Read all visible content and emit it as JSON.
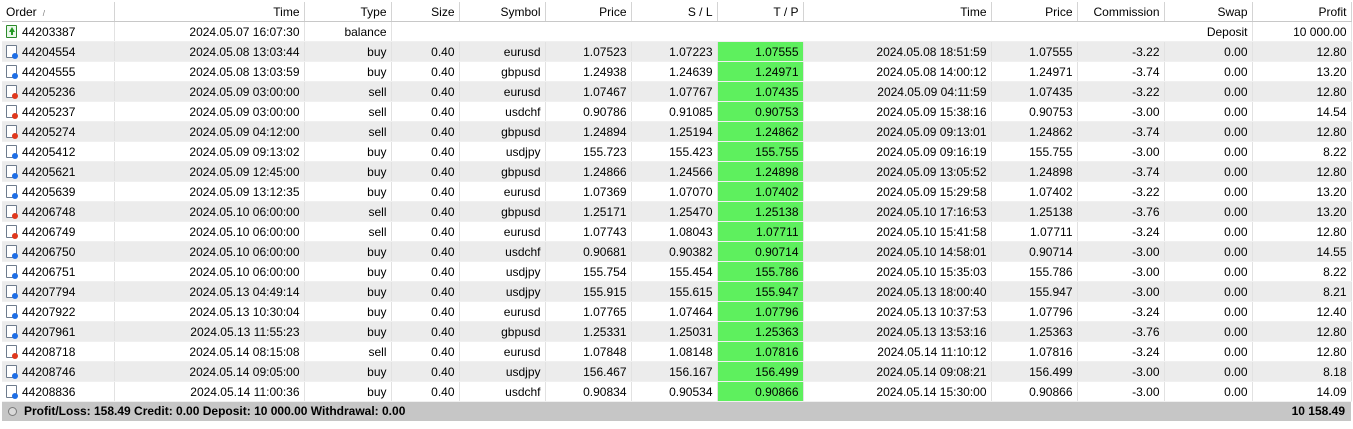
{
  "headers": {
    "order": "Order",
    "open_time": "Time",
    "type": "Type",
    "size": "Size",
    "symbol": "Symbol",
    "open_price": "Price",
    "sl": "S / L",
    "tp": "T / P",
    "close_time": "Time",
    "close_price": "Price",
    "commission": "Commission",
    "swap": "Swap",
    "profit": "Profit"
  },
  "balance_row": {
    "order": "44203387",
    "time": "2024.05.07 16:07:30",
    "type": "balance",
    "comment": "Deposit",
    "profit": "10 000.00"
  },
  "trades": [
    {
      "order": "44204554",
      "open_time": "2024.05.08 13:03:44",
      "type": "buy",
      "size": "0.40",
      "symbol": "eurusd",
      "open_price": "1.07523",
      "sl": "1.07223",
      "tp": "1.07555",
      "close_time": "2024.05.08 18:51:59",
      "close_price": "1.07555",
      "commission": "-3.22",
      "swap": "0.00",
      "profit": "12.80"
    },
    {
      "order": "44204555",
      "open_time": "2024.05.08 13:03:59",
      "type": "buy",
      "size": "0.40",
      "symbol": "gbpusd",
      "open_price": "1.24938",
      "sl": "1.24639",
      "tp": "1.24971",
      "close_time": "2024.05.08 14:00:12",
      "close_price": "1.24971",
      "commission": "-3.74",
      "swap": "0.00",
      "profit": "13.20"
    },
    {
      "order": "44205236",
      "open_time": "2024.05.09 03:00:00",
      "type": "sell",
      "size": "0.40",
      "symbol": "eurusd",
      "open_price": "1.07467",
      "sl": "1.07767",
      "tp": "1.07435",
      "close_time": "2024.05.09 04:11:59",
      "close_price": "1.07435",
      "commission": "-3.22",
      "swap": "0.00",
      "profit": "12.80"
    },
    {
      "order": "44205237",
      "open_time": "2024.05.09 03:00:00",
      "type": "sell",
      "size": "0.40",
      "symbol": "usdchf",
      "open_price": "0.90786",
      "sl": "0.91085",
      "tp": "0.90753",
      "close_time": "2024.05.09 15:38:16",
      "close_price": "0.90753",
      "commission": "-3.00",
      "swap": "0.00",
      "profit": "14.54"
    },
    {
      "order": "44205274",
      "open_time": "2024.05.09 04:12:00",
      "type": "sell",
      "size": "0.40",
      "symbol": "gbpusd",
      "open_price": "1.24894",
      "sl": "1.25194",
      "tp": "1.24862",
      "close_time": "2024.05.09 09:13:01",
      "close_price": "1.24862",
      "commission": "-3.74",
      "swap": "0.00",
      "profit": "12.80"
    },
    {
      "order": "44205412",
      "open_time": "2024.05.09 09:13:02",
      "type": "buy",
      "size": "0.40",
      "symbol": "usdjpy",
      "open_price": "155.723",
      "sl": "155.423",
      "tp": "155.755",
      "close_time": "2024.05.09 09:16:19",
      "close_price": "155.755",
      "commission": "-3.00",
      "swap": "0.00",
      "profit": "8.22"
    },
    {
      "order": "44205621",
      "open_time": "2024.05.09 12:45:00",
      "type": "buy",
      "size": "0.40",
      "symbol": "gbpusd",
      "open_price": "1.24866",
      "sl": "1.24566",
      "tp": "1.24898",
      "close_time": "2024.05.09 13:05:52",
      "close_price": "1.24898",
      "commission": "-3.74",
      "swap": "0.00",
      "profit": "12.80"
    },
    {
      "order": "44205639",
      "open_time": "2024.05.09 13:12:35",
      "type": "buy",
      "size": "0.40",
      "symbol": "eurusd",
      "open_price": "1.07369",
      "sl": "1.07070",
      "tp": "1.07402",
      "close_time": "2024.05.09 15:29:58",
      "close_price": "1.07402",
      "commission": "-3.22",
      "swap": "0.00",
      "profit": "13.20"
    },
    {
      "order": "44206748",
      "open_time": "2024.05.10 06:00:00",
      "type": "sell",
      "size": "0.40",
      "symbol": "gbpusd",
      "open_price": "1.25171",
      "sl": "1.25470",
      "tp": "1.25138",
      "close_time": "2024.05.10 17:16:53",
      "close_price": "1.25138",
      "commission": "-3.76",
      "swap": "0.00",
      "profit": "13.20"
    },
    {
      "order": "44206749",
      "open_time": "2024.05.10 06:00:00",
      "type": "sell",
      "size": "0.40",
      "symbol": "eurusd",
      "open_price": "1.07743",
      "sl": "1.08043",
      "tp": "1.07711",
      "close_time": "2024.05.10 15:41:58",
      "close_price": "1.07711",
      "commission": "-3.24",
      "swap": "0.00",
      "profit": "12.80"
    },
    {
      "order": "44206750",
      "open_time": "2024.05.10 06:00:00",
      "type": "buy",
      "size": "0.40",
      "symbol": "usdchf",
      "open_price": "0.90681",
      "sl": "0.90382",
      "tp": "0.90714",
      "close_time": "2024.05.10 14:58:01",
      "close_price": "0.90714",
      "commission": "-3.00",
      "swap": "0.00",
      "profit": "14.55"
    },
    {
      "order": "44206751",
      "open_time": "2024.05.10 06:00:00",
      "type": "buy",
      "size": "0.40",
      "symbol": "usdjpy",
      "open_price": "155.754",
      "sl": "155.454",
      "tp": "155.786",
      "close_time": "2024.05.10 15:35:03",
      "close_price": "155.786",
      "commission": "-3.00",
      "swap": "0.00",
      "profit": "8.22"
    },
    {
      "order": "44207794",
      "open_time": "2024.05.13 04:49:14",
      "type": "buy",
      "size": "0.40",
      "symbol": "usdjpy",
      "open_price": "155.915",
      "sl": "155.615",
      "tp": "155.947",
      "close_time": "2024.05.13 18:00:40",
      "close_price": "155.947",
      "commission": "-3.00",
      "swap": "0.00",
      "profit": "8.21"
    },
    {
      "order": "44207922",
      "open_time": "2024.05.13 10:30:04",
      "type": "buy",
      "size": "0.40",
      "symbol": "eurusd",
      "open_price": "1.07765",
      "sl": "1.07464",
      "tp": "1.07796",
      "close_time": "2024.05.13 10:37:53",
      "close_price": "1.07796",
      "commission": "-3.24",
      "swap": "0.00",
      "profit": "12.40"
    },
    {
      "order": "44207961",
      "open_time": "2024.05.13 11:55:23",
      "type": "buy",
      "size": "0.40",
      "symbol": "gbpusd",
      "open_price": "1.25331",
      "sl": "1.25031",
      "tp": "1.25363",
      "close_time": "2024.05.13 13:53:16",
      "close_price": "1.25363",
      "commission": "-3.76",
      "swap": "0.00",
      "profit": "12.80"
    },
    {
      "order": "44208718",
      "open_time": "2024.05.14 08:15:08",
      "type": "sell",
      "size": "0.40",
      "symbol": "eurusd",
      "open_price": "1.07848",
      "sl": "1.08148",
      "tp": "1.07816",
      "close_time": "2024.05.14 11:10:12",
      "close_price": "1.07816",
      "commission": "-3.24",
      "swap": "0.00",
      "profit": "12.80"
    },
    {
      "order": "44208746",
      "open_time": "2024.05.14 09:05:00",
      "type": "buy",
      "size": "0.40",
      "symbol": "usdjpy",
      "open_price": "156.467",
      "sl": "156.167",
      "tp": "156.499",
      "close_time": "2024.05.14 09:08:21",
      "close_price": "156.499",
      "commission": "-3.00",
      "swap": "0.00",
      "profit": "8.18"
    },
    {
      "order": "44208836",
      "open_time": "2024.05.14 11:00:36",
      "type": "buy",
      "size": "0.40",
      "symbol": "usdchf",
      "open_price": "0.90834",
      "sl": "0.90534",
      "tp": "0.90866",
      "close_time": "2024.05.14 15:30:00",
      "close_price": "0.90866",
      "commission": "-3.00",
      "swap": "0.00",
      "profit": "14.09"
    }
  ],
  "footer": {
    "summary": "Profit/Loss: 158.49  Credit: 0.00  Deposit: 10 000.00  Withdrawal: 0.00",
    "total": "10 158.49"
  },
  "colors": {
    "tp_highlight": "#5ef05e",
    "buy_icon": "#1e6ee6",
    "sell_icon": "#e0381c",
    "balance_icon": "#239a23",
    "footer_bg": "#c6c6c6"
  }
}
